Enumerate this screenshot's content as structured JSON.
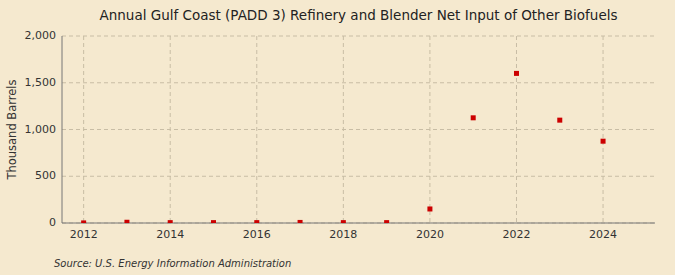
{
  "chart_data": {
    "type": "scatter",
    "title": "Annual Gulf Coast (PADD 3) Refinery and Blender Net Input of Other Biofuels",
    "ylabel": "Thousand Barrels",
    "annotations": [
      "Source: U.S. Energy Information Administration"
    ],
    "x": [
      2012,
      2013,
      2014,
      2015,
      2016,
      2017,
      2018,
      2019,
      2020,
      2021,
      2022,
      2023,
      2024
    ],
    "values": [
      1,
      8,
      4,
      4,
      4,
      6,
      4,
      4,
      150,
      1125,
      1600,
      1100,
      875
    ],
    "color": "#cc0000",
    "marker": "square",
    "xlim": [
      2011.5,
      2025.2
    ],
    "xticks": [
      2012,
      2014,
      2016,
      2018,
      2020,
      2022,
      2024
    ],
    "ylim": [
      0,
      2000
    ],
    "yticks": [
      0,
      500,
      {
        "value": 1000,
        "label": "1,000"
      },
      {
        "value": 1500,
        "label": "1,500"
      },
      {
        "value": 2000,
        "label": "2,000"
      }
    ],
    "grid": true
  }
}
